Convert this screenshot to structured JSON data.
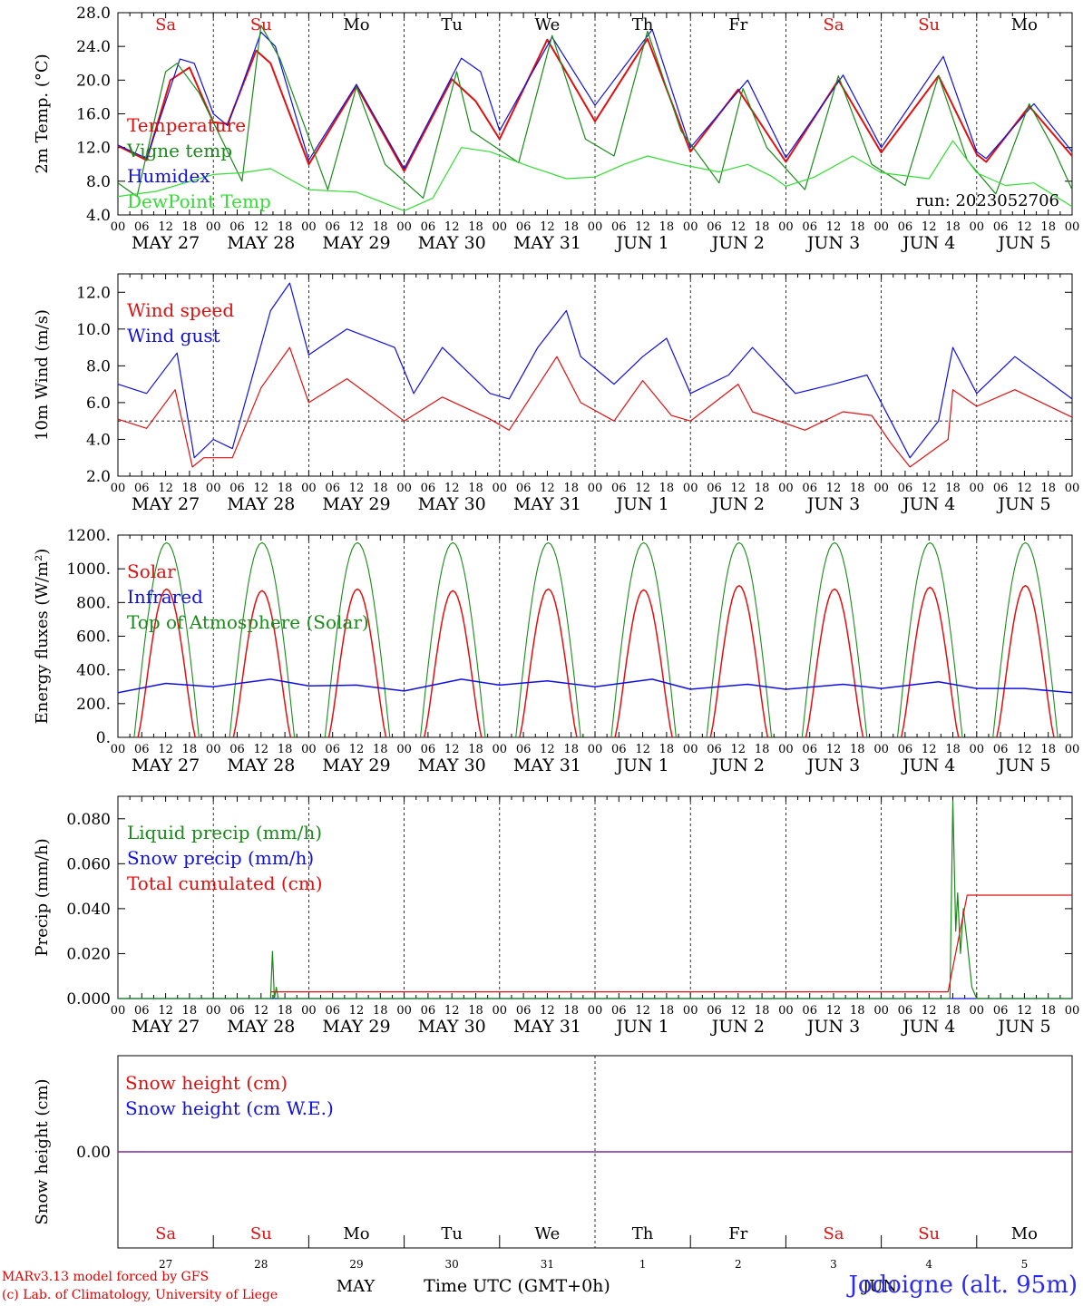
{
  "colors": {
    "red": "#e01010",
    "blue": "#1010e0",
    "green": "#1a8a1a",
    "lightgreen": "#33dd33",
    "purple": "#7a2a9a",
    "black": "#000000"
  },
  "days": {
    "weekday": [
      "Sa",
      "Su",
      "Mo",
      "Tu",
      "We",
      "Th",
      "Fr",
      "Sa",
      "Su",
      "Mo"
    ],
    "weekday_color": [
      "red",
      "red",
      "black",
      "black",
      "black",
      "black",
      "black",
      "red",
      "red",
      "black"
    ],
    "date_labels": [
      "MAY 27",
      "MAY 28",
      "MAY 29",
      "MAY 30",
      "MAY 31",
      "JUN  1",
      "JUN  2",
      "JUN  3",
      "JUN  4",
      "JUN  5"
    ],
    "hour_labels": [
      "00",
      "06",
      "12",
      "18"
    ],
    "day_numbers": [
      "27",
      "28",
      "29",
      "30",
      "31",
      "1",
      "2",
      "3",
      "4",
      "5"
    ]
  },
  "chart_data": [
    {
      "id": "temp",
      "type": "line",
      "ylabel": "2m Temp. (°C)",
      "ylim": [
        4,
        28
      ],
      "ticks": [
        "4.0",
        "8.0",
        "12.0",
        "16.0",
        "20.0",
        "24.0",
        "28.0"
      ],
      "annotation": "run: 2023052706",
      "legend": [
        {
          "name": "Temperature",
          "color": "red"
        },
        {
          "name": "Vigne temp",
          "color": "green"
        },
        {
          "name": "Humidex",
          "color": "blue"
        },
        {
          "name": "DewPoint Temp",
          "color": "lightgreen"
        }
      ],
      "series": [
        {
          "name": "Temperature",
          "color": "red",
          "points": [
            [
              0,
              12.2
            ],
            [
              0.3,
              10.5
            ],
            [
              0.55,
              20
            ],
            [
              0.75,
              21.5
            ],
            [
              1,
              15
            ],
            [
              1.15,
              14.8
            ],
            [
              1.45,
              23.5
            ],
            [
              1.6,
              22
            ],
            [
              2,
              10
            ],
            [
              2.5,
              19.3
            ],
            [
              3,
              9.2
            ],
            [
              3.5,
              20.1
            ],
            [
              3.75,
              17.5
            ],
            [
              4,
              13
            ],
            [
              4.5,
              24.8
            ],
            [
              5,
              15.1
            ],
            [
              5.55,
              24.9
            ],
            [
              6,
              11.5
            ],
            [
              6.5,
              18.9
            ],
            [
              7,
              10.3
            ],
            [
              7.55,
              20
            ],
            [
              8,
              11.4
            ],
            [
              8.6,
              20.5
            ],
            [
              9,
              11.2
            ],
            [
              9.1,
              10.3
            ],
            [
              9.55,
              16.9
            ],
            [
              10,
              11
            ]
          ]
        },
        {
          "name": "Humidex",
          "color": "blue",
          "points": [
            [
              0,
              12.3
            ],
            [
              0.3,
              10.7
            ],
            [
              0.65,
              22.5
            ],
            [
              0.8,
              22
            ],
            [
              1,
              16
            ],
            [
              1.15,
              14.6
            ],
            [
              1.5,
              25.7
            ],
            [
              1.65,
              24
            ],
            [
              2,
              10.5
            ],
            [
              2.5,
              19.5
            ],
            [
              3,
              9.5
            ],
            [
              3.6,
              22.6
            ],
            [
              3.8,
              21
            ],
            [
              4,
              14
            ],
            [
              4.55,
              25.1
            ],
            [
              5,
              17
            ],
            [
              5.6,
              26
            ],
            [
              6,
              12
            ],
            [
              6.6,
              20
            ],
            [
              7,
              10.8
            ],
            [
              7.6,
              20.6
            ],
            [
              8,
              12
            ],
            [
              8.65,
              22.8
            ],
            [
              9,
              11.5
            ],
            [
              9.1,
              10.7
            ],
            [
              9.6,
              17.2
            ],
            [
              10,
              11.5
            ]
          ]
        },
        {
          "name": "Vigne temp",
          "color": "green",
          "points": [
            [
              0,
              7.8
            ],
            [
              0.2,
              6.2
            ],
            [
              0.5,
              21
            ],
            [
              0.62,
              22
            ],
            [
              0.85,
              18.5
            ],
            [
              1.3,
              8
            ],
            [
              1.5,
              26.5
            ],
            [
              1.7,
              22.5
            ],
            [
              2.2,
              7
            ],
            [
              2.5,
              19.2
            ],
            [
              2.8,
              10
            ],
            [
              3.2,
              6
            ],
            [
              3.55,
              21
            ],
            [
              3.7,
              14
            ],
            [
              4.2,
              10.2
            ],
            [
              4.55,
              25.3
            ],
            [
              4.9,
              13
            ],
            [
              5.2,
              11
            ],
            [
              5.55,
              25.8
            ],
            [
              5.9,
              14
            ],
            [
              6.3,
              7.8
            ],
            [
              6.55,
              19
            ],
            [
              6.8,
              12
            ],
            [
              7.2,
              7
            ],
            [
              7.55,
              20.5
            ],
            [
              7.9,
              10
            ],
            [
              8.25,
              7.5
            ],
            [
              8.6,
              20.5
            ],
            [
              8.9,
              10.5
            ],
            [
              9.2,
              6.5
            ],
            [
              9.55,
              17.2
            ],
            [
              9.8,
              12
            ],
            [
              10,
              7
            ]
          ]
        },
        {
          "name": "DewPoint Temp",
          "color": "lightgreen",
          "points": [
            [
              0,
              6.2
            ],
            [
              0.4,
              6.8
            ],
            [
              1,
              8.8
            ],
            [
              1.3,
              9
            ],
            [
              1.6,
              9.5
            ],
            [
              2,
              7
            ],
            [
              2.5,
              6.7
            ],
            [
              3,
              4.5
            ],
            [
              3.3,
              6
            ],
            [
              3.6,
              12
            ],
            [
              3.9,
              11.5
            ],
            [
              4.3,
              9.8
            ],
            [
              4.7,
              8.3
            ],
            [
              5,
              8.5
            ],
            [
              5.3,
              10
            ],
            [
              5.55,
              11
            ],
            [
              5.9,
              10
            ],
            [
              6.3,
              9.1
            ],
            [
              6.6,
              10
            ],
            [
              6.85,
              8.6
            ],
            [
              7,
              7.4
            ],
            [
              7.3,
              8.5
            ],
            [
              7.7,
              11
            ],
            [
              8,
              9
            ],
            [
              8.5,
              8.3
            ],
            [
              8.75,
              12.8
            ],
            [
              9,
              9
            ],
            [
              9.3,
              7.5
            ],
            [
              9.6,
              7.8
            ],
            [
              10,
              5
            ]
          ]
        }
      ]
    },
    {
      "id": "wind",
      "type": "line",
      "ylabel": "10m Wind (m/s)",
      "ylim": [
        2,
        13
      ],
      "ref_line": 5,
      "ticks": [
        "2.0",
        "4.0",
        "6.0",
        "8.0",
        "10.0",
        "12.0"
      ],
      "legend": [
        {
          "name": "Wind speed",
          "color": "red"
        },
        {
          "name": "Wind gust",
          "color": "blue"
        }
      ],
      "series": [
        {
          "name": "Wind speed",
          "color": "red",
          "points": [
            [
              0,
              5.1
            ],
            [
              0.3,
              4.6
            ],
            [
              0.6,
              6.7
            ],
            [
              0.78,
              2.5
            ],
            [
              0.9,
              3
            ],
            [
              1.2,
              3
            ],
            [
              1.5,
              6.8
            ],
            [
              1.8,
              9
            ],
            [
              2,
              6
            ],
            [
              2.4,
              7.3
            ],
            [
              3,
              5
            ],
            [
              3.4,
              6.3
            ],
            [
              3.9,
              5.1
            ],
            [
              4.1,
              4.5
            ],
            [
              4.6,
              8.5
            ],
            [
              4.85,
              6
            ],
            [
              5.2,
              5
            ],
            [
              5.5,
              7.2
            ],
            [
              5.8,
              5.3
            ],
            [
              6,
              5
            ],
            [
              6.5,
              7
            ],
            [
              6.65,
              5.5
            ],
            [
              7.2,
              4.5
            ],
            [
              7.6,
              5.5
            ],
            [
              7.9,
              5.3
            ],
            [
              8.1,
              3.8
            ],
            [
              8.3,
              2.5
            ],
            [
              8.7,
              4
            ],
            [
              8.75,
              6.7
            ],
            [
              9,
              5.8
            ],
            [
              9.4,
              6.7
            ],
            [
              10,
              5.2
            ]
          ]
        },
        {
          "name": "Wind gust",
          "color": "blue",
          "points": [
            [
              0,
              7
            ],
            [
              0.3,
              6.5
            ],
            [
              0.62,
              8.7
            ],
            [
              0.8,
              3
            ],
            [
              1,
              4
            ],
            [
              1.2,
              3.5
            ],
            [
              1.6,
              11
            ],
            [
              1.8,
              12.5
            ],
            [
              2,
              8.6
            ],
            [
              2.4,
              10
            ],
            [
              2.9,
              9
            ],
            [
              3.1,
              6.5
            ],
            [
              3.4,
              9
            ],
            [
              3.9,
              6.5
            ],
            [
              4.1,
              6.2
            ],
            [
              4.4,
              9
            ],
            [
              4.7,
              11
            ],
            [
              4.85,
              8.5
            ],
            [
              5.2,
              7
            ],
            [
              5.5,
              8.5
            ],
            [
              5.75,
              9.5
            ],
            [
              6,
              6.5
            ],
            [
              6.4,
              7.5
            ],
            [
              6.65,
              9
            ],
            [
              7.1,
              6.5
            ],
            [
              7.5,
              7
            ],
            [
              7.85,
              7.5
            ],
            [
              8.1,
              5
            ],
            [
              8.3,
              3
            ],
            [
              8.6,
              5
            ],
            [
              8.75,
              9
            ],
            [
              9,
              6.5
            ],
            [
              9.4,
              8.5
            ],
            [
              10,
              6.2
            ]
          ]
        }
      ]
    },
    {
      "id": "energy",
      "type": "line",
      "ylabel": "Energy fluxes (W/m²)",
      "ylim": [
        0,
        1200
      ],
      "ticks": [
        "0.",
        "200.",
        "400.",
        "600.",
        "800.",
        "1000.",
        "1200."
      ],
      "legend": [
        {
          "name": "Solar",
          "color": "red"
        },
        {
          "name": "Infrared",
          "color": "blue"
        },
        {
          "name": "Top of Atmosphere (Solar)",
          "color": "green"
        }
      ],
      "solar_peak": [
        880,
        870,
        880,
        870,
        880,
        875,
        900,
        880,
        890,
        900
      ],
      "toa_peak": 1155,
      "infrared": [
        [
          0,
          265
        ],
        [
          0.5,
          320
        ],
        [
          1,
          300
        ],
        [
          1.6,
          345
        ],
        [
          2,
          305
        ],
        [
          2.5,
          310
        ],
        [
          3,
          275
        ],
        [
          3.6,
          345
        ],
        [
          4,
          310
        ],
        [
          4.5,
          335
        ],
        [
          5,
          300
        ],
        [
          5.6,
          345
        ],
        [
          6,
          285
        ],
        [
          6.6,
          315
        ],
        [
          7,
          285
        ],
        [
          7.6,
          315
        ],
        [
          8,
          290
        ],
        [
          8.6,
          330
        ],
        [
          9,
          290
        ],
        [
          9.5,
          290
        ],
        [
          10,
          265
        ]
      ]
    },
    {
      "id": "precip",
      "type": "line",
      "ylabel": "Precip (mm/h)",
      "ylim": [
        0,
        0.09
      ],
      "ticks": [
        "0.000",
        "0.020",
        "0.040",
        "0.060",
        "0.080"
      ],
      "legend": [
        {
          "name": "Liquid precip (mm/h)",
          "color": "green"
        },
        {
          "name": "Snow precip (mm/h)",
          "color": "blue"
        },
        {
          "name": "Total cumulated (cm)",
          "color": "red"
        }
      ],
      "series": [
        {
          "name": "Liquid precip (mm/h)",
          "color": "green",
          "points": [
            [
              0,
              0
            ],
            [
              1.6,
              0
            ],
            [
              1.62,
              0.021
            ],
            [
              1.64,
              0
            ],
            [
              1.66,
              0.005
            ],
            [
              1.68,
              0
            ],
            [
              8.72,
              0
            ],
            [
              8.75,
              0.088
            ],
            [
              8.78,
              0.03
            ],
            [
              8.8,
              0.047
            ],
            [
              8.83,
              0.02
            ],
            [
              8.86,
              0.04
            ],
            [
              8.9,
              0.025
            ],
            [
              8.95,
              0.005
            ],
            [
              9,
              0
            ],
            [
              10,
              0
            ]
          ]
        },
        {
          "name": "Total cumulated (cm)",
          "color": "red",
          "points": [
            [
              1.6,
              0.003
            ],
            [
              8.7,
              0.003
            ],
            [
              8.9,
              0.046
            ],
            [
              10,
              0.046
            ]
          ]
        }
      ]
    },
    {
      "id": "snow",
      "type": "line",
      "ylabel": "Snow height (cm)",
      "ylim": [
        -1,
        1
      ],
      "ticks": [
        "0.00"
      ],
      "legend": [
        {
          "name": "Snow height (cm)",
          "color": "red"
        },
        {
          "name": "Snow height (cm W.E.)",
          "color": "blue"
        }
      ],
      "series": [
        {
          "name": "Snow height",
          "color": "purple",
          "points": [
            [
              0,
              0
            ],
            [
              10,
              0
            ]
          ]
        }
      ]
    }
  ],
  "footer": {
    "month_may": "MAY",
    "month_jun": "JUN",
    "xlabel": "Time UTC (GMT+0h)",
    "credit1": "MARv3.13 model forced by GFS",
    "credit2": "(c) Lab. of Climatology, University of Liege",
    "station": "Jodoigne (alt. 95m)"
  }
}
